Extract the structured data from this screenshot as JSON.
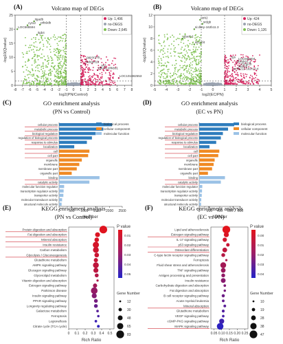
{
  "chart_data": [
    {
      "panel": "(A)",
      "type": "scatter",
      "title": "Volcano map of DEGs",
      "xlabel": "log2(PN/Control)",
      "ylabel": "-log10(Qvalue)",
      "xticks": [
        "-8",
        "-7",
        "-6",
        "-5",
        "-4",
        "-3",
        "-2",
        "-1",
        "0",
        "1",
        "2",
        "3",
        "4",
        "5",
        "6",
        "7",
        "8"
      ],
      "yticks": [
        "0",
        "5",
        "10",
        "15",
        "20",
        "25"
      ],
      "xlim": [
        -8,
        8
      ],
      "ylim": [
        0,
        25
      ],
      "legend": [
        {
          "label": "Up: 1,496",
          "color": "#d6245f"
        },
        {
          "label": "no-DEGS",
          "color": "#9aa3b0"
        },
        {
          "label": "Down: 2,645",
          "color": "#7fc152"
        }
      ],
      "gene_labels": [
        {
          "text": "itgadb",
          "x": -5.4,
          "y": 22.8
        },
        {
          "text": "cyt12",
          "x": -6.3,
          "y": 21.4
        },
        {
          "text": "ptfs9db",
          "x": -4.6,
          "y": 21.6
        },
        {
          "text": "LOC565594",
          "x": -7.7,
          "y": 20.0
        },
        {
          "text": "itgb4",
          "x": -5.0,
          "y": 18.0
        },
        {
          "text": "ppp1r27b",
          "x": 1.7,
          "y": 9.2
        },
        {
          "text": "sebgef19",
          "x": 1.6,
          "y": 7.6
        },
        {
          "text": "srd",
          "x": 3.7,
          "y": 6.4
        },
        {
          "text": "pdt4.b",
          "x": 3.3,
          "y": 5.4
        },
        {
          "text": "nfrkbs1",
          "x": 4.6,
          "y": 5.4
        },
        {
          "text": "LOC101882553",
          "x": 6.2,
          "y": 2.6
        }
      ]
    },
    {
      "panel": "(B)",
      "type": "scatter",
      "title": "Volcano map of DEGs",
      "xlabel": "log2(EC/PN)",
      "ylabel": "-log10(Qvalue)",
      "xticks": [
        "-5",
        "-4",
        "-3",
        "-2",
        "-1",
        "0",
        "1",
        "2",
        "3",
        "4",
        "5"
      ],
      "yticks": [
        "0",
        "2",
        "4",
        "6",
        "8",
        "10",
        "12"
      ],
      "xlim": [
        -5,
        5
      ],
      "ylim": [
        0,
        12
      ],
      "legend": [
        {
          "label": "Up: 424",
          "color": "#d6245f"
        },
        {
          "label": "no-DEGS",
          "color": "#9aa3b0"
        },
        {
          "label": "Down: 1,126",
          "color": "#7fc152"
        }
      ],
      "gene_labels": [
        {
          "text": "ntrk2",
          "x": -1.1,
          "y": 11.2
        },
        {
          "text": "srdgb",
          "x": -0.9,
          "y": 10.5
        },
        {
          "text": "si:dkey-162b11.3",
          "x": -1.6,
          "y": 9.6
        },
        {
          "text": "plac8.2",
          "x": -2.6,
          "y": 8.0
        },
        {
          "text": "slco1f4",
          "x": -1.6,
          "y": 7.0
        },
        {
          "text": "rgs",
          "x": 1.5,
          "y": 4.5
        },
        {
          "text": "LOC558404",
          "x": 2.1,
          "y": 4.2
        },
        {
          "text": "cbr5b01.1",
          "x": 2.0,
          "y": 3.7
        },
        {
          "text": "chmp1b",
          "x": 2.3,
          "y": 3.3
        },
        {
          "text": "cnoi1b",
          "x": 2.1,
          "y": 2.9
        },
        {
          "text": "si:ch211-182r10.4",
          "x": 1.7,
          "y": 2.5
        }
      ]
    },
    {
      "panel": "(C)",
      "type": "bar",
      "title": "GO enrichment analysis",
      "subtitle": "(PN vs Control)",
      "xlabel": "Number",
      "xticks": [
        "0",
        "500",
        "1000",
        "1500",
        "2000",
        "2500"
      ],
      "xlim": [
        0,
        2500
      ],
      "legend": [
        {
          "label": "biological process",
          "color": "#2f7dbd"
        },
        {
          "label": "cellular component",
          "color": "#f08a24"
        },
        {
          "label": "molecular function",
          "color": "#9bc2e6"
        }
      ],
      "categories": [
        {
          "label": "cellular process",
          "group": "biological process",
          "value": 2100
        },
        {
          "label": "metabolic process",
          "group": "biological process",
          "value": 1750
        },
        {
          "label": "biological regulation",
          "group": "biological process",
          "value": 1450
        },
        {
          "label": "regulation of biological process",
          "group": "biological process",
          "value": 1300
        },
        {
          "label": "response to stimulus",
          "group": "biological process",
          "value": 1100
        },
        {
          "label": "localization",
          "group": "biological process",
          "value": 600
        },
        {
          "label": "cell",
          "group": "cellular component",
          "value": 1200
        },
        {
          "label": "cell part",
          "group": "cellular component",
          "value": 1150
        },
        {
          "label": "organelle",
          "group": "cellular component",
          "value": 900
        },
        {
          "label": "membrane",
          "group": "cellular component",
          "value": 800
        },
        {
          "label": "membrane part",
          "group": "cellular component",
          "value": 700
        },
        {
          "label": "organelle part",
          "group": "cellular component",
          "value": 500
        },
        {
          "label": "binding",
          "group": "molecular function",
          "value": 1600
        },
        {
          "label": "catalytic activity",
          "group": "molecular function",
          "value": 1200
        },
        {
          "label": "molecular function regulator",
          "group": "molecular function",
          "value": 200
        },
        {
          "label": "transcription regulator activity",
          "group": "molecular function",
          "value": 180
        },
        {
          "label": "transporter activity",
          "group": "molecular function",
          "value": 170
        },
        {
          "label": "molecular transducer activity",
          "group": "molecular function",
          "value": 120
        },
        {
          "label": "structural molecule activity",
          "group": "molecular function",
          "value": 100
        }
      ]
    },
    {
      "panel": "(D)",
      "type": "bar",
      "title": "GO enrichment analysis",
      "subtitle": "(EC vs PN)",
      "xlabel": "Number",
      "xticks": [
        "0",
        "200",
        "400",
        "600",
        "800"
      ],
      "xlim": [
        0,
        800
      ],
      "legend": [
        {
          "label": "biological process",
          "color": "#2f7dbd"
        },
        {
          "label": "cellular component",
          "color": "#f08a24"
        },
        {
          "label": "molecular function",
          "color": "#9bc2e6"
        }
      ],
      "categories": [
        {
          "label": "cellular process",
          "group": "biological process",
          "value": 680
        },
        {
          "label": "metabolic process",
          "group": "biological process",
          "value": 560
        },
        {
          "label": "biological regulation",
          "group": "biological process",
          "value": 460
        },
        {
          "label": "regulation of biological process",
          "group": "biological process",
          "value": 420
        },
        {
          "label": "response to stimulus",
          "group": "biological process",
          "value": 330
        },
        {
          "label": "localization",
          "group": "biological process",
          "value": 200
        },
        {
          "label": "cell",
          "group": "cellular component",
          "value": 390
        },
        {
          "label": "cell part",
          "group": "cellular component",
          "value": 370
        },
        {
          "label": "organelle",
          "group": "cellular component",
          "value": 300
        },
        {
          "label": "membrane",
          "group": "cellular component",
          "value": 280
        },
        {
          "label": "membrane part",
          "group": "cellular component",
          "value": 250
        },
        {
          "label": "organelle part",
          "group": "cellular component",
          "value": 170
        },
        {
          "label": "binding",
          "group": "molecular function",
          "value": 500
        },
        {
          "label": "catalytic activity",
          "group": "molecular function",
          "value": 420
        },
        {
          "label": "molecular function regulator",
          "group": "molecular function",
          "value": 60
        },
        {
          "label": "transcription regulator activity",
          "group": "molecular function",
          "value": 55
        },
        {
          "label": "transporter activity",
          "group": "molecular function",
          "value": 50
        },
        {
          "label": "molecular transducer activity",
          "group": "molecular function",
          "value": 40
        },
        {
          "label": "structural molecule activity",
          "group": "molecular function",
          "value": 35
        }
      ]
    },
    {
      "panel": "(E)",
      "type": "scatter",
      "title": "KEGG enrichment analysis",
      "subtitle": "(PN vs Control)",
      "xlabel": "Rich Ratio",
      "xticks": [
        "0",
        "0.1",
        "0.2",
        "0.3",
        "0.4",
        "0.5"
      ],
      "xlim": [
        0,
        0.55
      ],
      "color_legend": {
        "title": "P value",
        "ticks": [
          "0.01",
          "0.02",
          "0.03",
          "0.04",
          "0.05"
        ],
        "low_color": "#e3141c",
        "high_color": "#2323c8"
      },
      "size_legend": {
        "title": "Gene Number",
        "values": [
          "12",
          "30",
          "48",
          "65",
          "83"
        ]
      },
      "points": [
        {
          "term": "Protein digestion and absorption",
          "rich_ratio": 0.42,
          "p": 0.001,
          "genes": 83
        },
        {
          "term": "Fat digestion and absorption",
          "rich_ratio": 0.35,
          "p": 0.002,
          "genes": 48
        },
        {
          "term": "Mineral absorption",
          "rich_ratio": 0.34,
          "p": 0.003,
          "genes": 44
        },
        {
          "term": "Insulin resistance",
          "rich_ratio": 0.33,
          "p": 0.004,
          "genes": 65
        },
        {
          "term": "Carbon metabolism",
          "rich_ratio": 0.33,
          "p": 0.006,
          "genes": 60
        },
        {
          "term": "Glycolysis / Gluconeogenesis",
          "rich_ratio": 0.34,
          "p": 0.007,
          "genes": 45
        },
        {
          "term": "Glutathione metabolism",
          "rich_ratio": 0.33,
          "p": 0.008,
          "genes": 40
        },
        {
          "term": "AMPK signaling pathway",
          "rich_ratio": 0.33,
          "p": 0.01,
          "genes": 60
        },
        {
          "term": "Glucagon signaling pathway",
          "rich_ratio": 0.33,
          "p": 0.011,
          "genes": 50
        },
        {
          "term": "Glycerolipid metabolism",
          "rich_ratio": 0.34,
          "p": 0.013,
          "genes": 36
        },
        {
          "term": "Vitamin digestion and absorption",
          "rich_ratio": 0.35,
          "p": 0.015,
          "genes": 16
        },
        {
          "term": "Estrogen signaling pathway",
          "rich_ratio": 0.32,
          "p": 0.018,
          "genes": 40
        },
        {
          "term": "Parkinson disease",
          "rich_ratio": 0.31,
          "p": 0.022,
          "genes": 70
        },
        {
          "term": "Insulin signaling pathway",
          "rich_ratio": 0.31,
          "p": 0.026,
          "genes": 50
        },
        {
          "term": "PPAR signaling pathway",
          "rich_ratio": 0.33,
          "p": 0.03,
          "genes": 35
        },
        {
          "term": "Longevity regulating pathway",
          "rich_ratio": 0.33,
          "p": 0.034,
          "genes": 35
        },
        {
          "term": "Galactose metabolism",
          "rich_ratio": 0.35,
          "p": 0.038,
          "genes": 20
        },
        {
          "term": "Ferroptosis",
          "rich_ratio": 0.36,
          "p": 0.042,
          "genes": 18
        },
        {
          "term": "Legionellosis",
          "rich_ratio": 0.33,
          "p": 0.046,
          "genes": 20
        },
        {
          "term": "Citrate cycle (TCA cycle)",
          "rich_ratio": 0.36,
          "p": 0.049,
          "genes": 22
        }
      ]
    },
    {
      "panel": "(F)",
      "type": "scatter",
      "title": "KEGG enrichment analysis",
      "subtitle": "(EC vs PN)",
      "xlabel": "Rich Ratio",
      "xticks": [
        "0.05",
        "0.10",
        "0.15",
        "0.20",
        "0.25"
      ],
      "xlim": [
        0.03,
        0.27
      ],
      "color_legend": {
        "title": "P value",
        "ticks": [
          "0.00",
          "0.01",
          "0.02",
          "0.03",
          "0.04"
        ],
        "low_color": "#e3141c",
        "high_color": "#2323c8"
      },
      "size_legend": {
        "title": "Gene Number",
        "values": [
          "10",
          "19",
          "28",
          "38",
          "47"
        ]
      },
      "points": [
        {
          "term": "Lipid and atherosclerosis",
          "rich_ratio": 0.13,
          "p": 0.0,
          "genes": 47
        },
        {
          "term": "Estrogen signaling pathway",
          "rich_ratio": 0.13,
          "p": 0.002,
          "genes": 30
        },
        {
          "term": "IL-17 signaling pathway",
          "rich_ratio": 0.12,
          "p": 0.004,
          "genes": 25
        },
        {
          "term": "p53 signaling pathway",
          "rich_ratio": 0.14,
          "p": 0.006,
          "genes": 20
        },
        {
          "term": "Osteoclast differentiation",
          "rich_ratio": 0.12,
          "p": 0.008,
          "genes": 28
        },
        {
          "term": "C-type lectin receptor signaling pathway",
          "rich_ratio": 0.11,
          "p": 0.01,
          "genes": 22
        },
        {
          "term": "Ferroptosis",
          "rich_ratio": 0.13,
          "p": 0.012,
          "genes": 12
        },
        {
          "term": "Fluid shear stress and atherosclerosis",
          "rich_ratio": 0.11,
          "p": 0.014,
          "genes": 35
        },
        {
          "term": "TNF signaling pathway",
          "rich_ratio": 0.11,
          "p": 0.016,
          "genes": 28
        },
        {
          "term": "Antigen processing and presentation",
          "rich_ratio": 0.11,
          "p": 0.018,
          "genes": 22
        },
        {
          "term": "Insulin resistance",
          "rich_ratio": 0.11,
          "p": 0.02,
          "genes": 28
        },
        {
          "term": "Carbohydrate digestion and absorption",
          "rich_ratio": 0.12,
          "p": 0.022,
          "genes": 14
        },
        {
          "term": "Fat digestion and absorption",
          "rich_ratio": 0.12,
          "p": 0.024,
          "genes": 13
        },
        {
          "term": "B cell receptor signaling pathway",
          "rich_ratio": 0.11,
          "p": 0.026,
          "genes": 18
        },
        {
          "term": "Acute myeloid leukemia",
          "rich_ratio": 0.11,
          "p": 0.028,
          "genes": 15
        },
        {
          "term": "Mineral absorption",
          "rich_ratio": 0.12,
          "p": 0.03,
          "genes": 15
        },
        {
          "term": "Glutathione metabolism",
          "rich_ratio": 0.11,
          "p": 0.032,
          "genes": 16
        },
        {
          "term": "VEGF signaling pathway",
          "rich_ratio": 0.11,
          "p": 0.034,
          "genes": 14
        },
        {
          "term": "cGMP-PKG signaling pathway",
          "rich_ratio": 0.1,
          "p": 0.036,
          "genes": 30
        },
        {
          "term": "MAPK signaling pathway",
          "rich_ratio": 0.09,
          "p": 0.04,
          "genes": 40
        }
      ]
    }
  ]
}
